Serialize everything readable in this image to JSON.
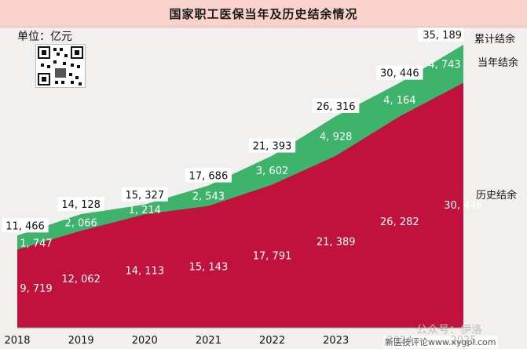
{
  "chart_data": {
    "type": "area",
    "title": "国家职工医保当年及历史结余情况",
    "unit": "单位：亿元",
    "categories": [
      "2018",
      "2019",
      "2020",
      "2021",
      "2022",
      "2023",
      "2024",
      "2025"
    ],
    "series": [
      {
        "name": "历史结余",
        "color": "#c0123c",
        "values": [
          9719,
          12062,
          14113,
          15143,
          17791,
          21389,
          26282,
          30446
        ],
        "labels": [
          "9, 719",
          "12, 062",
          "14, 113",
          "15, 143",
          "17, 791",
          "21, 389",
          "26, 282",
          "30, 446"
        ]
      },
      {
        "name": "当年结余",
        "color": "#3db36b",
        "values": [
          1747,
          2066,
          1214,
          2543,
          3602,
          4928,
          4164,
          4743
        ],
        "labels": [
          "1, 747",
          "2, 066",
          "1, 214",
          "2, 543",
          "3, 602",
          "4, 928",
          "4, 164",
          "4, 743"
        ]
      },
      {
        "name": "累计结余",
        "values": [
          11466,
          14128,
          15327,
          17686,
          21393,
          26316,
          30446,
          35189
        ],
        "labels": [
          "11, 466",
          "14, 128",
          "15, 327",
          "17, 686",
          "21, 393",
          "26, 316",
          "30, 446",
          "35, 189"
        ]
      }
    ],
    "ylim": [
      0,
      35189
    ],
    "grid": false,
    "legend": "right"
  },
  "qr_icon": "qr-code-icon",
  "watermark": {
    "line1": "公众号：伊洛",
    "line2": "新医技评论www.xygpl.com"
  }
}
